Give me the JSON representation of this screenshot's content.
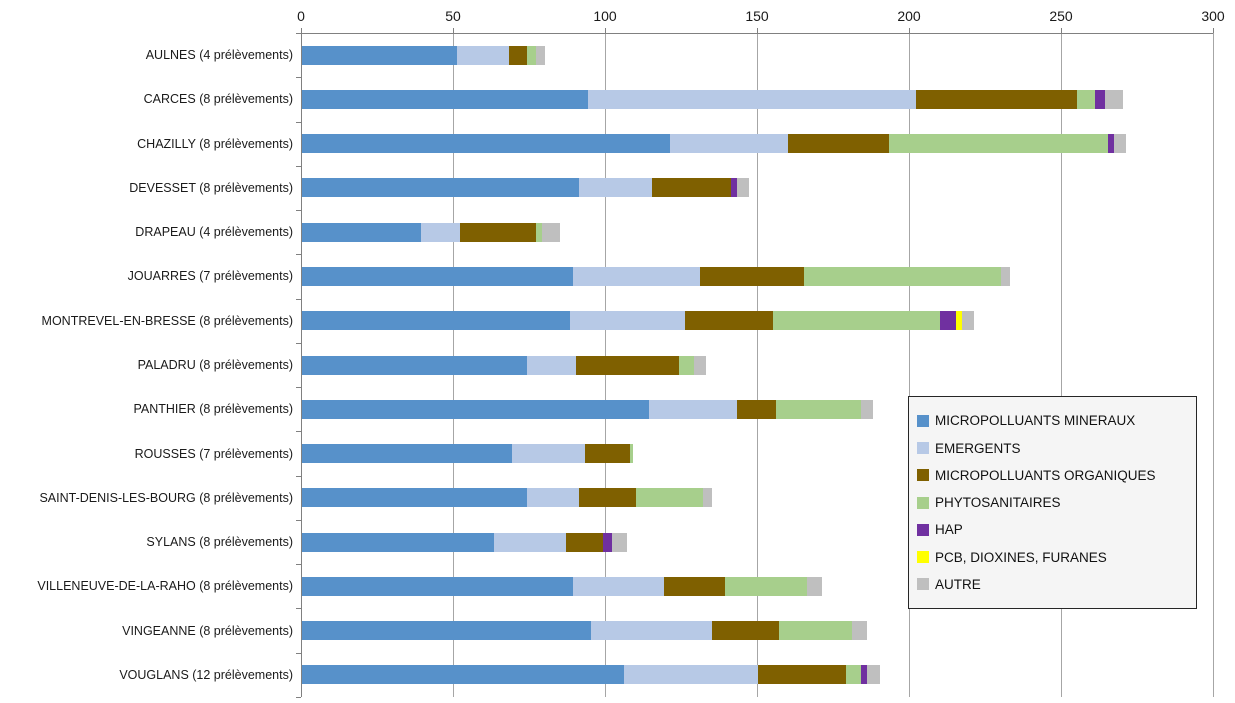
{
  "chart_data": {
    "type": "bar",
    "orientation": "horizontal",
    "stacked": true,
    "title": "",
    "xlabel": "",
    "ylabel": "",
    "xlim": [
      0,
      300
    ],
    "xticks": [
      0,
      50,
      100,
      150,
      200,
      250,
      300
    ],
    "grid": true,
    "legend_position": "right-overlay",
    "categories": [
      "AULNES (4 prélèvements)",
      "CARCES (8 prélèvements)",
      "CHAZILLY (8 prélèvements)",
      "DEVESSET (8 prélèvements)",
      "DRAPEAU (4 prélèvements)",
      "JOUARRES (7 prélèvements)",
      "MONTREVEL-EN-BRESSE (8 prélèvements)",
      "PALADRU (8 prélèvements)",
      "PANTHIER (8 prélèvements)",
      "ROUSSES (7 prélèvements)",
      "SAINT-DENIS-LES-BOURG (8 prélèvements)",
      "SYLANS (8 prélèvements)",
      "VILLENEUVE-DE-LA-RAHO (8 prélèvements)",
      "VINGEANNE (8 prélèvements)",
      "VOUGLANS (12 prélèvements)"
    ],
    "series": [
      {
        "name": "MICROPOLLUANTS MINERAUX",
        "color": "#5791CA",
        "values": [
          51,
          94,
          121,
          91,
          39,
          89,
          88,
          74,
          114,
          69,
          74,
          63,
          89,
          95,
          106
        ]
      },
      {
        "name": "EMERGENTS",
        "color": "#B7C9E6",
        "values": [
          17,
          108,
          39,
          24,
          13,
          42,
          38,
          16,
          29,
          24,
          17,
          24,
          30,
          40,
          44
        ]
      },
      {
        "name": "MICROPOLLUANTS ORGANIQUES",
        "color": "#7F6000",
        "values": [
          6,
          53,
          33,
          26,
          25,
          34,
          29,
          34,
          13,
          15,
          19,
          12,
          20,
          22,
          29
        ]
      },
      {
        "name": "PHYTOSANITAIRES",
        "color": "#A7CF8C",
        "values": [
          3,
          6,
          72,
          0,
          2,
          65,
          55,
          5,
          28,
          1,
          22,
          0,
          27,
          24,
          5
        ]
      },
      {
        "name": "HAP",
        "color": "#7030A0",
        "values": [
          0,
          3,
          2,
          2,
          0,
          0,
          5,
          0,
          0,
          0,
          0,
          3,
          0,
          0,
          2
        ]
      },
      {
        "name": "PCB, DIOXINES, FURANES",
        "color": "#FFFF00",
        "values": [
          0,
          0,
          0,
          0,
          0,
          0,
          2,
          0,
          0,
          0,
          0,
          0,
          0,
          0,
          0
        ]
      },
      {
        "name": "AUTRE",
        "color": "#BFBFBF",
        "values": [
          3,
          6,
          4,
          4,
          6,
          3,
          4,
          4,
          4,
          0,
          3,
          5,
          5,
          5,
          4
        ]
      }
    ]
  },
  "colors": {
    "gridline": "#A6A6A6",
    "axis": "#808080",
    "legend_background": "#F5F5F5",
    "legend_border": "#262626",
    "text": "#1A1A1A"
  }
}
